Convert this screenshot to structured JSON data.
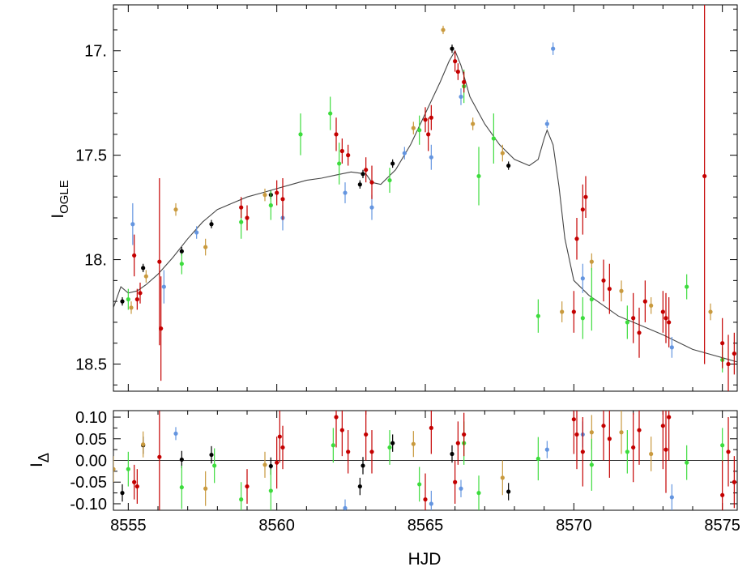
{
  "chart_data": [
    {
      "type": "scatter",
      "panel": "light-curve",
      "ylabel": "I",
      "ylabel_subscript": "OGLE",
      "xlim": [
        8554.5,
        8575.5
      ],
      "ylim": [
        18.63,
        16.78
      ],
      "y_inverted": true,
      "xticks": [
        8555,
        8560,
        8565,
        8570,
        8575
      ],
      "yticks": [
        17.0,
        17.5,
        18.0,
        18.5
      ],
      "ytick_labels": [
        "17.",
        "17.5",
        "18.",
        "18.5"
      ],
      "grid": false,
      "legend": "none",
      "model_curve": {
        "color": "#444444",
        "x": [
          8554.5,
          8554.75,
          8555.0,
          8555.3,
          8555.6,
          8556.0,
          8556.5,
          8557.0,
          8557.5,
          8558.0,
          8558.5,
          8559.0,
          8559.5,
          8560.0,
          8560.5,
          8561.0,
          8561.5,
          8562.0,
          8562.5,
          8563.0,
          8563.2,
          8563.5,
          8564.0,
          8564.5,
          8565.0,
          8565.5,
          8565.8,
          8566.0,
          8566.2,
          8566.5,
          8567.0,
          8567.5,
          8568.0,
          8568.5,
          8568.8,
          8569.0,
          8569.1,
          8569.3,
          8569.5,
          8569.7,
          8570.0,
          8570.5,
          8571.0,
          8571.5,
          8572.0,
          8573.0,
          8574.0,
          8575.0,
          8575.5
        ],
        "y": [
          18.23,
          18.13,
          18.16,
          18.15,
          18.12,
          18.07,
          17.99,
          17.9,
          17.82,
          17.76,
          17.73,
          17.7,
          17.68,
          17.66,
          17.64,
          17.62,
          17.61,
          17.595,
          17.58,
          17.59,
          17.63,
          17.64,
          17.57,
          17.45,
          17.3,
          17.15,
          17.05,
          17.0,
          17.07,
          17.22,
          17.35,
          17.45,
          17.52,
          17.55,
          17.52,
          17.42,
          17.38,
          17.45,
          17.65,
          17.9,
          18.1,
          18.17,
          18.22,
          18.27,
          18.3,
          18.36,
          18.43,
          18.47,
          18.49
        ]
      },
      "series": [
        {
          "color": "#000000",
          "x": [
            8554.8,
            8555.5,
            8556.8,
            8557.8,
            8559.8,
            8562.8,
            8562.9,
            8563.9,
            8565.9,
            8567.8
          ],
          "y": [
            18.2,
            18.04,
            17.96,
            17.83,
            17.69,
            17.64,
            17.59,
            17.54,
            16.99,
            17.55
          ],
          "err": [
            0.02,
            0.02,
            0.02,
            0.02,
            0.02,
            0.02,
            0.02,
            0.02,
            0.02,
            0.02
          ]
        },
        {
          "color": "#6495e0",
          "x": [
            8555.15,
            8556.2,
            8557.3,
            8560.2,
            8562.3,
            8563.2,
            8564.3,
            8565.2,
            8566.2,
            8569.1,
            8569.3,
            8570.3,
            8573.3
          ],
          "y": [
            17.83,
            18.13,
            17.87,
            17.8,
            17.68,
            17.75,
            17.49,
            17.51,
            17.22,
            17.35,
            16.99,
            18.09,
            18.42
          ],
          "err": [
            0.1,
            0.08,
            0.03,
            0.06,
            0.05,
            0.06,
            0.03,
            0.06,
            0.04,
            0.02,
            0.03,
            0.07,
            0.05
          ]
        },
        {
          "color": "#c99a3e",
          "x": [
            8555.1,
            8555.6,
            8556.6,
            8557.6,
            8559.6,
            8564.6,
            8565.6,
            8566.6,
            8567.6,
            8569.6,
            8570.6,
            8571.6,
            8572.6,
            8574.6
          ],
          "y": [
            18.23,
            18.08,
            17.76,
            17.94,
            17.69,
            17.37,
            16.9,
            17.35,
            17.49,
            18.25,
            18.01,
            18.15,
            18.22,
            18.25
          ],
          "err": [
            0.03,
            0.03,
            0.03,
            0.04,
            0.03,
            0.03,
            0.02,
            0.03,
            0.04,
            0.05,
            0.04,
            0.05,
            0.04,
            0.04
          ]
        },
        {
          "color": "#3ddc3d",
          "x": [
            8555.0,
            8556.8,
            8558.8,
            8559.8,
            8560.8,
            8561.8,
            8562.1,
            8563.8,
            8564.8,
            8566.3,
            8566.8,
            8567.3,
            8568.8,
            8570.3,
            8570.6,
            8571.8,
            8573.8,
            8575.0
          ],
          "y": [
            18.19,
            18.02,
            17.82,
            17.74,
            17.4,
            17.3,
            17.54,
            17.62,
            17.38,
            17.17,
            17.6,
            17.42,
            18.27,
            18.28,
            18.19,
            18.3,
            18.13,
            18.48
          ],
          "err": [
            0.05,
            0.05,
            0.08,
            0.07,
            0.1,
            0.08,
            0.1,
            0.06,
            0.07,
            0.08,
            0.14,
            0.12,
            0.08,
            0.1,
            0.15,
            0.08,
            0.06,
            0.06
          ]
        },
        {
          "color": "#c40000",
          "x": [
            8555.2,
            8555.3,
            8555.4,
            8556.05,
            8556.1,
            8558.8,
            8559.0,
            8560.0,
            8560.2,
            8562.0,
            8562.2,
            8562.4,
            8563.0,
            8563.2,
            8565.0,
            8565.1,
            8565.2,
            8566.0,
            8566.1,
            8566.3,
            8570.0,
            8570.1,
            8570.3,
            8570.4,
            8571.0,
            8571.2,
            8572.0,
            8572.2,
            8572.4,
            8573.0,
            8573.1,
            8573.2,
            8574.4,
            8575.0,
            8575.2,
            8575.4
          ],
          "y": [
            17.98,
            18.19,
            18.16,
            18.01,
            18.33,
            17.75,
            17.8,
            17.68,
            17.71,
            17.4,
            17.48,
            17.5,
            17.57,
            17.63,
            17.33,
            17.4,
            17.32,
            17.05,
            17.1,
            17.15,
            18.25,
            17.9,
            17.76,
            17.7,
            18.1,
            18.14,
            18.28,
            18.35,
            18.2,
            18.25,
            18.28,
            18.3,
            17.6,
            18.4,
            18.5,
            18.45
          ],
          "err": [
            0.1,
            0.05,
            0.05,
            0.4,
            0.25,
            0.05,
            0.06,
            0.06,
            0.1,
            0.08,
            0.06,
            0.05,
            0.06,
            0.08,
            0.06,
            0.08,
            0.06,
            0.05,
            0.04,
            0.05,
            0.1,
            0.1,
            0.12,
            0.1,
            0.1,
            0.12,
            0.12,
            0.12,
            0.1,
            0.1,
            0.12,
            0.12,
            0.9,
            0.12,
            0.14,
            0.1
          ]
        }
      ]
    },
    {
      "type": "scatter",
      "panel": "residuals",
      "ylabel": "I",
      "ylabel_subscript": "Δ",
      "xlabel": "HJD",
      "xlim": [
        8554.5,
        8575.5
      ],
      "ylim": [
        -0.115,
        0.115
      ],
      "xticks": [
        8555,
        8560,
        8565,
        8570,
        8575
      ],
      "xtick_labels": [
        "8555",
        "8560",
        "8565",
        "8570",
        "8575"
      ],
      "yticks": [
        -0.1,
        -0.05,
        0.0,
        0.05,
        0.1
      ],
      "ytick_labels": [
        "-0.10",
        "-0.05",
        "0.00",
        "0.05",
        "0.10"
      ],
      "zero_line": true,
      "grid": false,
      "legend": "none",
      "series": [
        {
          "color": "#000000",
          "x": [
            8554.8,
            8555.5,
            8556.8,
            8557.8,
            8559.8,
            8562.8,
            8562.9,
            8563.9,
            8565.9,
            8567.8
          ],
          "y": [
            -0.075,
            0.035,
            0.002,
            0.013,
            -0.013,
            -0.06,
            -0.012,
            0.04,
            0.015,
            -0.072
          ],
          "err": [
            0.02,
            0.02,
            0.02,
            0.02,
            0.02,
            0.02,
            0.02,
            0.02,
            0.02,
            0.02
          ]
        },
        {
          "color": "#6495e0",
          "x": [
            8556.6,
            8562.3,
            8565.2,
            8566.2,
            8569.1,
            8570.3,
            8573.3
          ],
          "y": [
            0.062,
            -0.11,
            -0.1,
            -0.065,
            0.025,
            0.06,
            -0.085
          ],
          "err": [
            0.015,
            0.02,
            0.03,
            0.02,
            0.02,
            0.03,
            0.03
          ]
        },
        {
          "color": "#c99a3e",
          "x": [
            8554.5,
            8555.5,
            8557.6,
            8559.6,
            8564.6,
            8567.6,
            8570.6,
            8571.6,
            8572.6
          ],
          "y": [
            -0.02,
            0.037,
            -0.065,
            -0.01,
            0.038,
            -0.04,
            0.065,
            0.065,
            0.015
          ],
          "err": [
            0.03,
            0.03,
            0.04,
            0.03,
            0.03,
            0.04,
            0.04,
            0.05,
            0.04
          ]
        },
        {
          "color": "#3ddc3d",
          "x": [
            8555.0,
            8556.8,
            8557.9,
            8558.8,
            8559.8,
            8561.9,
            8563.8,
            8564.8,
            8566.3,
            8566.8,
            8568.8,
            8570.6,
            8571.8,
            8573.8,
            8575.0
          ],
          "y": [
            -0.02,
            -0.062,
            -0.012,
            -0.09,
            -0.07,
            0.035,
            0.03,
            -0.055,
            0.04,
            -0.075,
            0.004,
            -0.01,
            0.02,
            -0.005,
            0.035
          ],
          "err": [
            0.04,
            0.05,
            0.04,
            0.04,
            0.05,
            0.04,
            0.04,
            0.04,
            0.05,
            0.04,
            0.05,
            0.06,
            0.05,
            0.04,
            0.04
          ]
        },
        {
          "color": "#c40000",
          "x": [
            8555.2,
            8555.3,
            8556.05,
            8559.0,
            8560.0,
            8560.1,
            8560.2,
            8562.0,
            8562.2,
            8562.4,
            8563.0,
            8563.2,
            8565.0,
            8565.2,
            8566.0,
            8566.1,
            8566.3,
            8570.0,
            8570.1,
            8570.3,
            8571.0,
            8571.2,
            8572.0,
            8572.2,
            8573.0,
            8573.1,
            8573.2,
            8575.0,
            8575.2,
            8575.4
          ],
          "y": [
            -0.05,
            -0.06,
            0.008,
            -0.06,
            -0.005,
            0.055,
            0.03,
            0.1,
            0.07,
            0.02,
            0.06,
            0.02,
            -0.09,
            0.075,
            -0.05,
            0.04,
            0.06,
            0.095,
            0.06,
            0.02,
            0.08,
            0.05,
            0.03,
            0.07,
            0.08,
            0.025,
            0.1,
            -0.08,
            0.02,
            -0.05
          ],
          "err": [
            0.04,
            0.04,
            0.25,
            0.04,
            0.06,
            0.06,
            0.05,
            0.07,
            0.06,
            0.05,
            0.06,
            0.05,
            0.06,
            0.06,
            0.05,
            0.05,
            0.05,
            0.08,
            0.08,
            0.08,
            0.08,
            0.09,
            0.08,
            0.08,
            0.1,
            0.1,
            0.1,
            0.08,
            0.08,
            0.06
          ]
        }
      ]
    }
  ]
}
